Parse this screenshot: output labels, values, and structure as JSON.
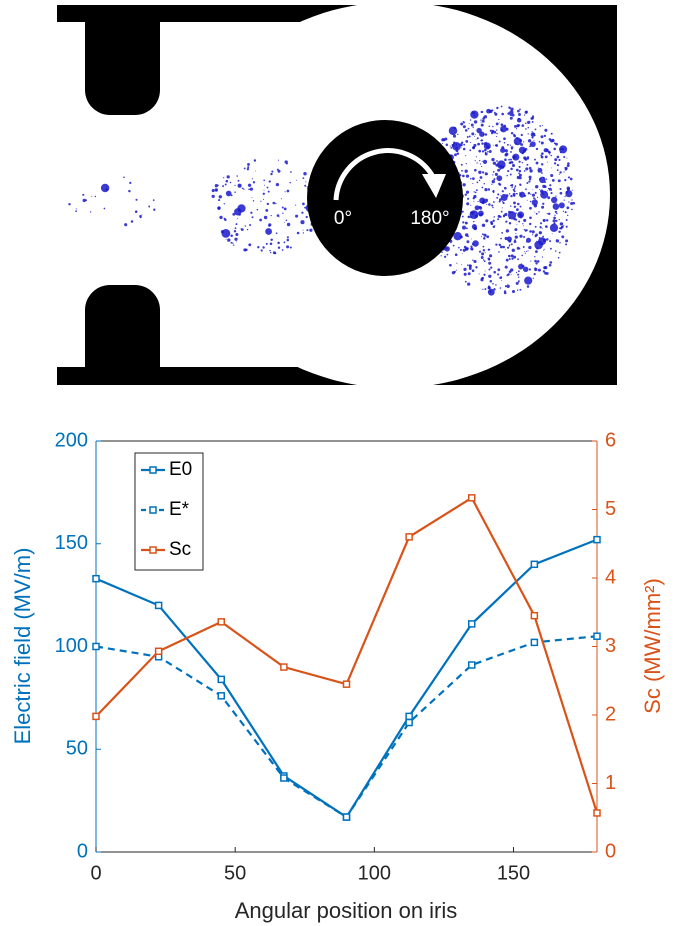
{
  "image": {
    "labels": [
      "0°",
      "180°"
    ]
  },
  "chart_data": {
    "type": "line",
    "x": [
      0,
      22.5,
      45,
      67.5,
      90,
      112.5,
      135,
      157.5,
      180
    ],
    "xlim": [
      0,
      180
    ],
    "xticks": [
      0,
      50,
      100,
      150
    ],
    "ylim": [
      0,
      200
    ],
    "yticks": [
      0,
      50,
      100,
      150,
      200
    ],
    "y2lim": [
      0,
      6
    ],
    "y2ticks": [
      0,
      1,
      2,
      3,
      4,
      5,
      6
    ],
    "xlabel": "Angular position on iris",
    "ylabel": "Electric field (MV/m)",
    "y2label": "Sc (MW/mm²)",
    "legend": "upper left",
    "left_axis_color": "#0072bd",
    "right_axis_color": "#d95319",
    "series": [
      {
        "name": "E0",
        "color": "#0072bd",
        "linestyle": "solid",
        "values": [
          133,
          120,
          84,
          37,
          17,
          66,
          111,
          140,
          152
        ]
      },
      {
        "name": "E*",
        "color": "#0072bd",
        "linestyle": "dashed",
        "values": [
          100,
          95,
          76,
          36,
          17,
          63,
          91,
          102,
          105
        ]
      },
      {
        "name": "Sc",
        "color": "#d95319",
        "linestyle": "solid",
        "axis": "y2",
        "values": [
          1.98,
          2.93,
          3.36,
          2.7,
          2.45,
          4.6,
          5.17,
          3.45,
          0.57
        ]
      }
    ]
  }
}
